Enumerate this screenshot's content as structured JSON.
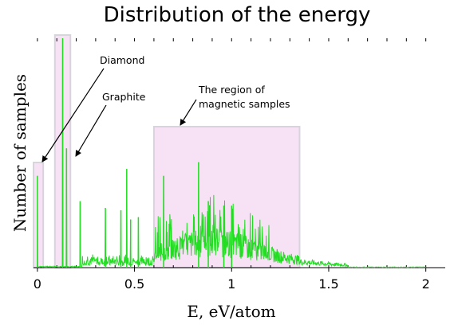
{
  "chart_data": {
    "type": "line",
    "title": "Distribution of the energy",
    "xlabel": "E, eV/atom",
    "ylabel": "Number of samples",
    "xlim": [
      -0.02,
      2.1
    ],
    "ylim": [
      0,
      100
    ],
    "x_ticks": [
      0,
      0.5,
      1,
      1.5,
      2
    ],
    "x_tick_labels": [
      "0",
      "0.5",
      "1",
      "1.5",
      "2"
    ],
    "grid": false,
    "legend": "none",
    "line_color": "#22dd22",
    "region_color": "#f7e1f5",
    "spikes": [
      {
        "x": 0.0,
        "y": 40
      },
      {
        "x": 0.13,
        "y": 100
      },
      {
        "x": 0.15,
        "y": 52
      },
      {
        "x": 0.22,
        "y": 29
      },
      {
        "x": 0.35,
        "y": 26
      },
      {
        "x": 0.43,
        "y": 25
      },
      {
        "x": 0.46,
        "y": 43
      },
      {
        "x": 0.48,
        "y": 21
      },
      {
        "x": 0.52,
        "y": 22
      },
      {
        "x": 0.65,
        "y": 40
      },
      {
        "x": 0.83,
        "y": 46
      },
      {
        "x": 0.88,
        "y": 29
      },
      {
        "x": 0.96,
        "y": 27
      },
      {
        "x": 1.0,
        "y": 27
      }
    ],
    "regions": [
      {
        "name": "diamond",
        "x": [
          -0.02,
          0.03
        ]
      },
      {
        "name": "graphite",
        "x": [
          0.09,
          0.17
        ]
      },
      {
        "name": "magnetic",
        "x": [
          0.6,
          1.35
        ]
      }
    ],
    "annotations": [
      {
        "id": "diamond",
        "text": "Diamond"
      },
      {
        "id": "graphite",
        "text": "Graphite"
      },
      {
        "id": "magnetic_1",
        "text": "The region of"
      },
      {
        "id": "magnetic_2",
        "text": "magnetic samples"
      }
    ]
  }
}
